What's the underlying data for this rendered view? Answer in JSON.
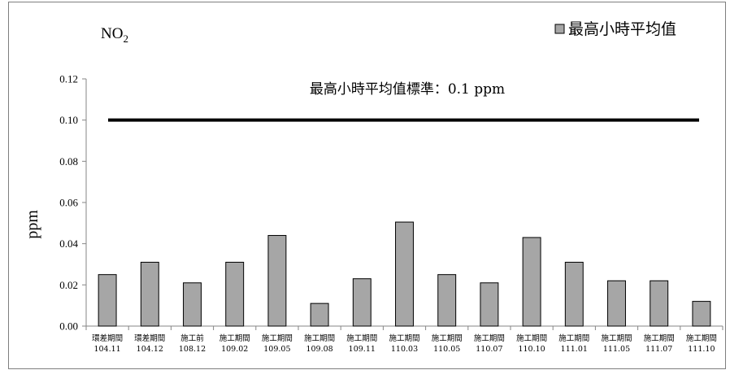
{
  "chart_data": {
    "type": "bar",
    "title": "NO",
    "title_subscript": "2",
    "ylabel": "ppm",
    "xlabel": "",
    "ylim": [
      0,
      0.12
    ],
    "yticks": [
      "0.00",
      "0.02",
      "0.04",
      "0.06",
      "0.08",
      "0.10",
      "0.12"
    ],
    "grid": false,
    "legend_position": "top-right",
    "categories": [
      [
        "環差期間",
        "104.11"
      ],
      [
        "環差期間",
        "104.12"
      ],
      [
        "施工前",
        "108.12"
      ],
      [
        "施工期間",
        "109.02"
      ],
      [
        "施工期間",
        "109.05"
      ],
      [
        "施工期間",
        "109.08"
      ],
      [
        "施工期間",
        "109.11"
      ],
      [
        "施工期間",
        "110.03"
      ],
      [
        "施工期間",
        "110.05"
      ],
      [
        "施工期間",
        "110.07"
      ],
      [
        "施工期間",
        "110.10"
      ],
      [
        "施工期間",
        "111.01"
      ],
      [
        "施工期間",
        "111.05"
      ],
      [
        "施工期間",
        "111.07"
      ],
      [
        "施工期間",
        "111.10"
      ]
    ],
    "series": [
      {
        "name": "最高小時平均值",
        "color": "#a6a6a6",
        "values": [
          0.025,
          0.031,
          0.021,
          0.031,
          0.044,
          0.011,
          0.023,
          0.0505,
          0.025,
          0.021,
          0.043,
          0.031,
          0.022,
          0.022,
          0.012
        ]
      }
    ],
    "reference_line": {
      "value": 0.1,
      "label": "最高小時平均值標準：0.1 ppm",
      "color": "#000000"
    }
  }
}
